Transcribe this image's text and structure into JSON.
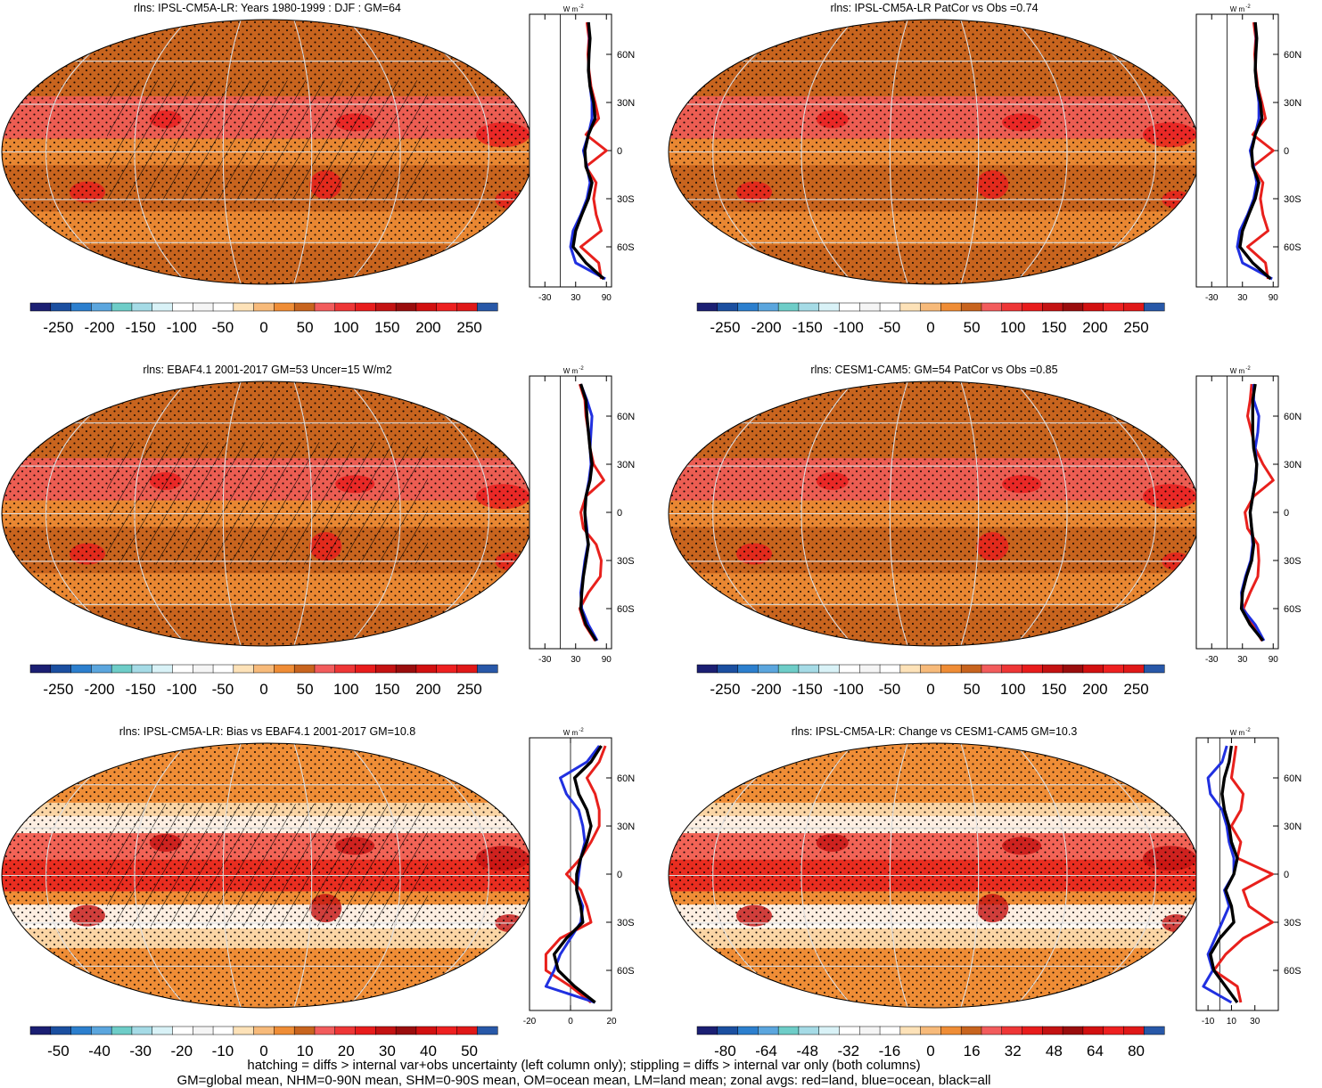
{
  "footer": {
    "line1": "hatching = diffs > internal var+obs uncertainty (left column only); stippling = diffs > internal var only (both columns)",
    "line2": "GM=global mean, NHM=0-90N mean, SHM=0-90S mean, OM=ocean mean, LM=land mean; zonal avgs: red=land, blue=ocean, black=all"
  },
  "colors": {
    "land": "#e8201c",
    "ocean": "#2030e0",
    "all": "#000000",
    "grid": "#dddddd",
    "map_background": "#c8641e"
  },
  "chart_data": [
    {
      "type": "heatmap",
      "title": "rlns: IPSL-CM5A-LR: Years 1980-1999 : DJF : GM=64",
      "colorbar_ticks": [
        "-250",
        "-200",
        "-150",
        "-100",
        "-50",
        "0",
        "50",
        "100",
        "150",
        "200",
        "250"
      ],
      "hatched": true,
      "zonal": {
        "unit": "W m",
        "unit_exp": "-2",
        "xticks": [
          "-30",
          "30",
          "90"
        ],
        "xlim": [
          -60,
          100
        ],
        "yticks": [
          "60N",
          "30N",
          "0",
          "30S",
          "60S"
        ],
        "lat": [
          80,
          70,
          60,
          50,
          40,
          30,
          20,
          10,
          0,
          -10,
          -20,
          -30,
          -40,
          -50,
          -60,
          -70,
          -80
        ],
        "all": [
          55,
          58,
          56,
          55,
          58,
          65,
          68,
          55,
          48,
          50,
          62,
          55,
          42,
          30,
          25,
          50,
          85
        ],
        "land": [
          52,
          56,
          54,
          56,
          60,
          68,
          75,
          50,
          90,
          50,
          70,
          65,
          70,
          80,
          40,
          75,
          80
        ],
        "ocean": [
          55,
          57,
          56,
          55,
          58,
          62,
          62,
          55,
          45,
          52,
          58,
          52,
          40,
          25,
          20,
          30,
          88
        ]
      }
    },
    {
      "type": "heatmap",
      "title": "rlns: IPSL-CM5A-LR PatCor vs Obs =0.74",
      "colorbar_ticks": [
        "-250",
        "-200",
        "-150",
        "-100",
        "-50",
        "0",
        "50",
        "100",
        "150",
        "200",
        "250"
      ],
      "hatched": false,
      "zonal": {
        "unit": "W m",
        "unit_exp": "-2",
        "xticks": [
          "-30",
          "30",
          "90"
        ],
        "xlim": [
          -60,
          100
        ],
        "yticks": [
          "60N",
          "30N",
          "0",
          "30S",
          "60S"
        ],
        "lat": [
          80,
          70,
          60,
          50,
          40,
          30,
          20,
          10,
          0,
          -10,
          -20,
          -30,
          -40,
          -50,
          -60,
          -70,
          -80
        ],
        "all": [
          55,
          58,
          56,
          55,
          58,
          65,
          68,
          55,
          48,
          50,
          62,
          55,
          42,
          30,
          25,
          50,
          85
        ],
        "land": [
          52,
          56,
          54,
          56,
          60,
          68,
          75,
          50,
          90,
          50,
          70,
          65,
          70,
          80,
          40,
          75,
          80
        ],
        "ocean": [
          55,
          57,
          56,
          55,
          58,
          62,
          62,
          55,
          45,
          52,
          58,
          52,
          40,
          25,
          20,
          30,
          88
        ]
      }
    },
    {
      "type": "heatmap",
      "title": "rlns: EBAF4.1 2001-2017 GM=53 Uncer=15 W/m2",
      "colorbar_ticks": [
        "-250",
        "-200",
        "-150",
        "-100",
        "-50",
        "0",
        "50",
        "100",
        "150",
        "200",
        "250"
      ],
      "hatched": true,
      "zonal": {
        "unit": "W m",
        "unit_exp": "-2",
        "xticks": [
          "-30",
          "30",
          "90"
        ],
        "xlim": [
          -60,
          100
        ],
        "yticks": [
          "60N",
          "30N",
          "0",
          "30S",
          "60S"
        ],
        "lat": [
          80,
          70,
          60,
          50,
          40,
          30,
          20,
          10,
          0,
          -10,
          -20,
          -30,
          -40,
          -50,
          -60,
          -70,
          -80
        ],
        "all": [
          40,
          50,
          52,
          55,
          58,
          62,
          58,
          50,
          48,
          50,
          55,
          50,
          45,
          42,
          40,
          50,
          70
        ],
        "land": [
          38,
          48,
          50,
          55,
          58,
          65,
          85,
          50,
          40,
          45,
          70,
          80,
          78,
          55,
          38,
          48,
          68
        ],
        "ocean": [
          40,
          52,
          62,
          60,
          58,
          60,
          56,
          50,
          48,
          52,
          54,
          48,
          44,
          40,
          42,
          55,
          72
        ]
      }
    },
    {
      "type": "heatmap",
      "title": "rlns: CESM1-CAM5: GM=54 PatCor vs Obs =0.85",
      "colorbar_ticks": [
        "-250",
        "-200",
        "-150",
        "-100",
        "-50",
        "0",
        "50",
        "100",
        "150",
        "200",
        "250"
      ],
      "hatched": false,
      "zonal": {
        "unit": "W m",
        "unit_exp": "-2",
        "xticks": [
          "-30",
          "30",
          "90"
        ],
        "xlim": [
          -60,
          100
        ],
        "yticks": [
          "60N",
          "30N",
          "0",
          "30S",
          "60S"
        ],
        "lat": [
          80,
          70,
          60,
          50,
          40,
          30,
          20,
          10,
          0,
          -10,
          -20,
          -30,
          -40,
          -50,
          -60,
          -70,
          -80
        ],
        "all": [
          55,
          50,
          50,
          50,
          52,
          58,
          56,
          50,
          45,
          48,
          52,
          48,
          38,
          30,
          28,
          45,
          70
        ],
        "land": [
          48,
          45,
          40,
          48,
          55,
          70,
          90,
          52,
          35,
          40,
          60,
          62,
          60,
          45,
          32,
          50,
          68
        ],
        "ocean": [
          52,
          52,
          62,
          60,
          55,
          58,
          55,
          50,
          45,
          48,
          50,
          46,
          36,
          28,
          30,
          55,
          72
        ]
      }
    },
    {
      "type": "heatmap",
      "title": "rlns: IPSL-CM5A-LR: Bias vs EBAF4.1 2001-2017 GM=10.8",
      "colorbar_ticks": [
        "-50",
        "-40",
        "-30",
        "-20",
        "-10",
        "0",
        "10",
        "20",
        "30",
        "40",
        "50"
      ],
      "hatched": true,
      "zonal": {
        "unit": "W m",
        "unit_exp": "-2",
        "xticks": [
          "-20",
          "0",
          "20"
        ],
        "xlim": [
          -20,
          20
        ],
        "yticks": [
          "60N",
          "30N",
          "0",
          "30S",
          "60S"
        ],
        "lat": [
          80,
          70,
          60,
          50,
          40,
          30,
          20,
          10,
          0,
          -10,
          -20,
          -30,
          -40,
          -50,
          -60,
          -70,
          -80
        ],
        "all": [
          15,
          10,
          2,
          4,
          8,
          10,
          8,
          5,
          3,
          3,
          5,
          6,
          -2,
          -8,
          -6,
          2,
          12
        ],
        "land": [
          17,
          14,
          8,
          12,
          14,
          14,
          10,
          5,
          -2,
          5,
          8,
          10,
          -5,
          -12,
          -12,
          0,
          10
        ],
        "ocean": [
          14,
          8,
          -5,
          -2,
          4,
          6,
          7,
          5,
          4,
          3,
          6,
          5,
          0,
          -5,
          -8,
          -12,
          12
        ]
      }
    },
    {
      "type": "heatmap",
      "title": "rlns: IPSL-CM5A-LR: Change vs CESM1-CAM5 GM=10.3",
      "colorbar_ticks": [
        "-80",
        "-64",
        "-48",
        "-32",
        "-16",
        "0",
        "16",
        "32",
        "48",
        "64",
        "80"
      ],
      "hatched": false,
      "zonal": {
        "unit": "W m",
        "unit_exp": "-2",
        "xticks": [
          "-10",
          "10",
          "30"
        ],
        "xlim": [
          -20,
          50
        ],
        "yticks": [
          "60N",
          "30N",
          "0",
          "30S",
          "60S"
        ],
        "lat": [
          80,
          70,
          60,
          50,
          40,
          30,
          20,
          10,
          0,
          -10,
          -20,
          -30,
          -40,
          -50,
          -60,
          -70,
          -80
        ],
        "all": [
          10,
          8,
          4,
          2,
          4,
          8,
          10,
          15,
          12,
          5,
          10,
          12,
          0,
          -8,
          -5,
          5,
          15
        ],
        "land": [
          14,
          12,
          10,
          20,
          18,
          10,
          18,
          15,
          45,
          20,
          25,
          45,
          20,
          5,
          -5,
          15,
          18
        ],
        "ocean": [
          6,
          2,
          -10,
          -8,
          2,
          6,
          8,
          12,
          12,
          4,
          8,
          2,
          -4,
          -10,
          -6,
          -14,
          10
        ]
      }
    }
  ]
}
